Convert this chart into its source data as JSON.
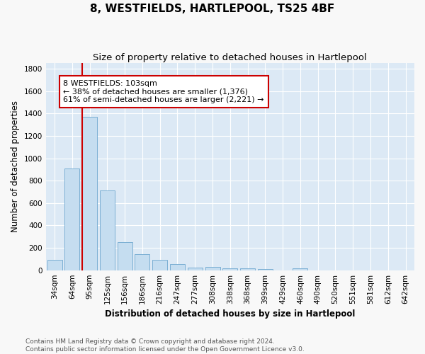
{
  "title": "8, WESTFIELDS, HARTLEPOOL, TS25 4BF",
  "subtitle": "Size of property relative to detached houses in Hartlepool",
  "xlabel": "Distribution of detached houses by size in Hartlepool",
  "ylabel": "Number of detached properties",
  "categories": [
    "34sqm",
    "64sqm",
    "95sqm",
    "125sqm",
    "156sqm",
    "186sqm",
    "216sqm",
    "247sqm",
    "277sqm",
    "308sqm",
    "338sqm",
    "368sqm",
    "399sqm",
    "429sqm",
    "460sqm",
    "490sqm",
    "520sqm",
    "551sqm",
    "581sqm",
    "612sqm",
    "642sqm"
  ],
  "values": [
    90,
    910,
    1370,
    710,
    250,
    145,
    95,
    55,
    25,
    30,
    15,
    15,
    10,
    0,
    20,
    0,
    0,
    0,
    0,
    0,
    0
  ],
  "bar_color": "#c5ddf0",
  "bar_edge_color": "#7bafd4",
  "bg_color": "#dce9f5",
  "grid_color": "#ffffff",
  "vline_x_index": 2,
  "vline_color": "#cc0000",
  "annotation_text": "8 WESTFIELDS: 103sqm\n← 38% of detached houses are smaller (1,376)\n61% of semi-detached houses are larger (2,221) →",
  "annotation_box_color": "#ffffff",
  "annotation_box_edge": "#cc0000",
  "ylim": [
    0,
    1850
  ],
  "yticks": [
    0,
    200,
    400,
    600,
    800,
    1000,
    1200,
    1400,
    1600,
    1800
  ],
  "footer": "Contains HM Land Registry data © Crown copyright and database right 2024.\nContains public sector information licensed under the Open Government Licence v3.0.",
  "title_fontsize": 11,
  "subtitle_fontsize": 9.5,
  "xlabel_fontsize": 8.5,
  "ylabel_fontsize": 8.5,
  "tick_fontsize": 7.5,
  "annotation_fontsize": 8,
  "footer_fontsize": 6.5
}
